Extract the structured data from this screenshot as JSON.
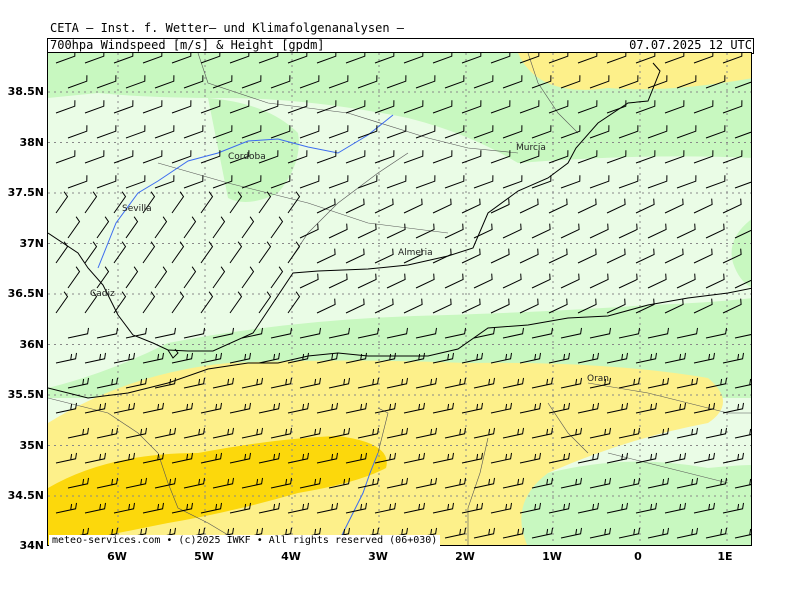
{
  "header": {
    "institute": "CETA – Inst. f. Wetter– und Klimafolgenanalysen –",
    "parameter": "700hpa Windspeed [m/s] & Height [gpdm]",
    "valid_time": "07.07.2025 12 UTC"
  },
  "footer": {
    "copyright": "meteo-services.com • (c)2025 IWKF • All rights reserved (06+030)"
  },
  "axes": {
    "lat_labels": [
      "38.5N",
      "38N",
      "37.5N",
      "37N",
      "36.5N",
      "36N",
      "35.5N",
      "35N",
      "34.5N",
      "34N"
    ],
    "lon_labels": [
      "6W",
      "5W",
      "4W",
      "3W",
      "2W",
      "1W",
      "0",
      "1E"
    ]
  },
  "cities": [
    {
      "name": "Cordoba"
    },
    {
      "name": "Sevilla"
    },
    {
      "name": "Murcia"
    },
    {
      "name": "Almeria"
    },
    {
      "name": "Cadiz"
    },
    {
      "name": "Oran"
    }
  ],
  "legend_colors": {
    "very_light_green": "#eafce6",
    "light_green": "#c8f8c0",
    "light_yellow": "#fdf08a",
    "yellow": "#fcd80c",
    "coast": "#000000",
    "river": "#3c6cf0",
    "grid": "#888888"
  }
}
